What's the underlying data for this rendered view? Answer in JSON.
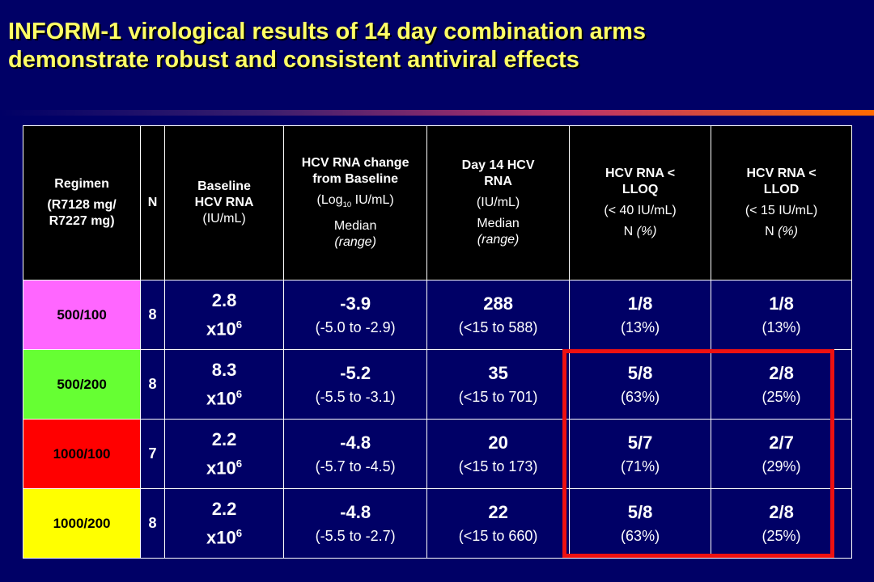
{
  "title": {
    "line1": "INFORM-1 virological results of 14 day combination arms",
    "line2": "demonstrate robust and consistent antiviral effects"
  },
  "header": {
    "regimen": "Regimen",
    "regimen_sub": "(R7128 mg/ R7227 mg)",
    "n": "N",
    "baseline_line1": "Baseline HCV RNA",
    "baseline_unit": "(IU/mL)",
    "change_title": "HCV RNA change from Baseline",
    "change_unit_prefix": "(Log",
    "change_unit_sub": "10",
    "change_unit_suffix": " IU/mL)",
    "change_stat": "Median",
    "change_range": "(range)",
    "day14_title": "Day 14 HCV RNA",
    "day14_unit": "(IU/mL)",
    "day14_stat": "Median",
    "day14_range": "(range)",
    "lloq_title": "HCV RNA < LLOQ",
    "lloq_unit": "(< 40 IU/mL)",
    "lloq_n": "N ",
    "lloq_pct": "(%)",
    "llod_title": "HCV RNA < LLOD",
    "llod_unit": "(< 15 IU/mL)",
    "llod_n": "N ",
    "llod_pct": "(%)"
  },
  "colors": {
    "row0": "#ff66ff",
    "row1": "#66ff33",
    "row2": "#ff0000",
    "row3": "#ffff00",
    "highlight": "#ee1111"
  },
  "rows": [
    {
      "regimen": "500/100",
      "n": "8",
      "baseline": "2.8",
      "baseline_exp": "x10",
      "baseline_pow": "6",
      "change": "-3.9",
      "change_range": "(-5.0 to -2.9)",
      "day14": "288",
      "day14_range": "(<15 to 588)",
      "lloq": "1/8",
      "lloq_pct": "(13%)",
      "llod": "1/8",
      "llod_pct": "(13%)"
    },
    {
      "regimen": "500/200",
      "n": "8",
      "baseline": "8.3",
      "baseline_exp": "x10",
      "baseline_pow": "6",
      "change": "-5.2",
      "change_range": "(-5.5 to -3.1)",
      "day14": "35",
      "day14_range": "(<15 to 701)",
      "lloq": "5/8",
      "lloq_pct": "(63%)",
      "llod": "2/8",
      "llod_pct": "(25%)"
    },
    {
      "regimen": "1000/100",
      "n": "7",
      "baseline": "2.2",
      "baseline_exp": "x10",
      "baseline_pow": "6",
      "change": "-4.8",
      "change_range": "(-5.7 to -4.5)",
      "day14": "20",
      "day14_range": "(<15 to 173)",
      "lloq": "5/7",
      "lloq_pct": "(71%)",
      "llod": "2/7",
      "llod_pct": "(29%)"
    },
    {
      "regimen": "1000/200",
      "n": "8",
      "baseline": "2.2",
      "baseline_exp": "x10",
      "baseline_pow": "6",
      "change": "-4.8",
      "change_range": "(-5.5 to -2.7)",
      "day14": "22",
      "day14_range": "(<15 to 660)",
      "lloq": "5/8",
      "lloq_pct": "(63%)",
      "llod": "2/8",
      "llod_pct": "(25%)"
    }
  ]
}
